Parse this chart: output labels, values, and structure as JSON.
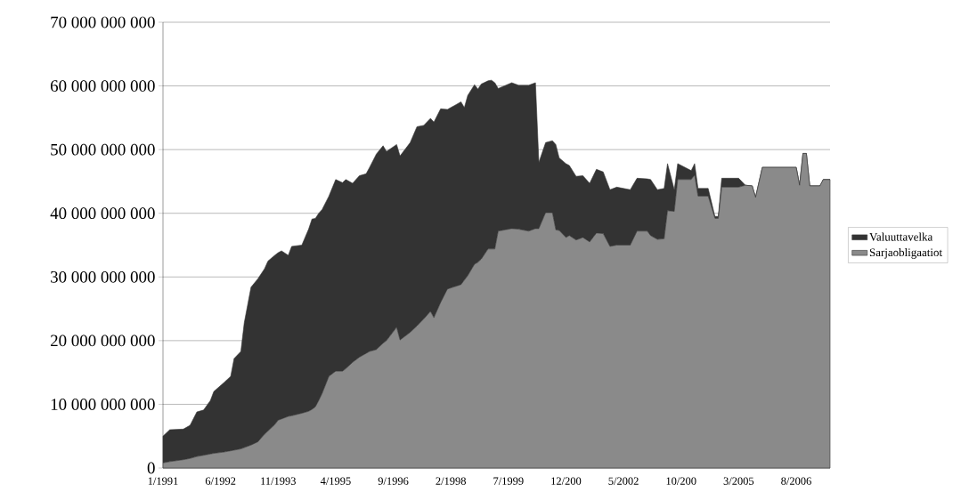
{
  "chart_data": {
    "type": "area",
    "stacked": true,
    "grid": "y",
    "legend": "right",
    "x": [
      "1991-01",
      "1991-03",
      "1991-07",
      "1991-09",
      "1991-11",
      "1992-01",
      "1992-03",
      "1992-04",
      "1992-07",
      "1992-09",
      "1992-10",
      "1992-12",
      "1993-01",
      "1993-03",
      "1993-05",
      "1993-07",
      "1993-08",
      "1993-10",
      "1993-11",
      "1993-12",
      "1994-02",
      "1994-03",
      "1994-06",
      "1994-08",
      "1994-09",
      "1994-10",
      "1994-11",
      "1994-12",
      "1995-02",
      "1995-04",
      "1995-06",
      "1995-07",
      "1995-09",
      "1995-11",
      "1996-01",
      "1996-02",
      "1996-04",
      "1996-06",
      "1996-07",
      "1996-10",
      "1996-11",
      "1997-02",
      "1997-04",
      "1997-06",
      "1997-08",
      "1997-09",
      "1997-11",
      "1998-01",
      "1998-05",
      "1998-06",
      "1998-07",
      "1998-09",
      "1998-10",
      "1998-11",
      "1999-01",
      "1999-02",
      "1999-03",
      "1999-04",
      "1999-08",
      "1999-10",
      "2000-01",
      "2000-03",
      "2000-04",
      "2000-06",
      "2000-08",
      "2000-09",
      "2000-10",
      "2000-12",
      "2001-01",
      "2001-03",
      "2001-05",
      "2001-07",
      "2001-09",
      "2001-11",
      "2002-01",
      "2002-03",
      "2002-05",
      "2002-07",
      "2002-09",
      "2002-12",
      "2003-01",
      "2003-03",
      "2003-05",
      "2003-06",
      "2003-08",
      "2003-09",
      "2004-01",
      "2004-02",
      "2004-03",
      "2004-06",
      "2004-08",
      "2004-09",
      "2004-10",
      "2005-03",
      "2005-05",
      "2005-07",
      "2005-08",
      "2005-10",
      "2006-08",
      "2006-09",
      "2006-10",
      "2006-11",
      "2006-12",
      "2007-03",
      "2007-04",
      "2007-06"
    ],
    "series": [
      {
        "name": "Sarjaobligaatiot",
        "color": "#8a8a8a",
        "values": [
          800000000,
          1000000000,
          1300000000,
          1500000000,
          1800000000,
          2000000000,
          2200000000,
          2300000000,
          2500000000,
          2700000000,
          2800000000,
          3000000000,
          3200000000,
          3600000000,
          4100000000,
          5300000000,
          5800000000,
          6800000000,
          7500000000,
          7700000000,
          8100000000,
          8200000000,
          8600000000,
          8900000000,
          9200000000,
          9600000000,
          10600000000,
          11700000000,
          14400000000,
          15200000000,
          15200000000,
          15600000000,
          16600000000,
          17400000000,
          18000000000,
          18300000000,
          18600000000,
          19600000000,
          20000000000,
          22100000000,
          20100000000,
          21300000000,
          22300000000,
          23400000000,
          24600000000,
          23600000000,
          26000000000,
          28100000000,
          28800000000,
          29500000000,
          30200000000,
          32000000000,
          32300000000,
          32800000000,
          34400000000,
          34400000000,
          34400000000,
          37200000000,
          37600000000,
          37500000000,
          37200000000,
          37600000000,
          37600000000,
          40100000000,
          40100000000,
          37400000000,
          37300000000,
          36200000000,
          36500000000,
          35800000000,
          36200000000,
          35500000000,
          36900000000,
          36800000000,
          34800000000,
          35000000000,
          35000000000,
          35000000000,
          37200000000,
          37200000000,
          36500000000,
          35900000000,
          36000000000,
          40400000000,
          40300000000,
          45300000000,
          45300000000,
          46000000000,
          42700000000,
          42700000000,
          39200000000,
          39200000000,
          44100000000,
          44100000000,
          44400000000,
          44300000000,
          42500000000,
          47200000000,
          47200000000,
          44400000000,
          49400000000,
          49400000000,
          44300000000,
          44300000000,
          45300000000,
          45300000000
        ]
      },
      {
        "name": "Valuuttavelka",
        "color": "#333333",
        "values": [
          4200000000,
          5000000000,
          4800000000,
          5200000000,
          7000000000,
          7100000000,
          8400000000,
          9700000000,
          10900000000,
          11700000000,
          14400000000,
          15300000000,
          19600000000,
          24800000000,
          25600000000,
          26000000000,
          26700000000,
          26600000000,
          26300000000,
          26400000000,
          25300000000,
          26600000000,
          26400000000,
          28600000000,
          29900000000,
          29600000000,
          29400000000,
          28900000000,
          28300000000,
          30100000000,
          29600000000,
          29700000000,
          28100000000,
          28500000000,
          28200000000,
          28900000000,
          30700000000,
          31000000000,
          29700000000,
          28700000000,
          28900000000,
          29800000000,
          31300000000,
          30400000000,
          30300000000,
          30700000000,
          30400000000,
          28200000000,
          28700000000,
          27100000000,
          28300000000,
          28200000000,
          27200000000,
          27500000000,
          26400000000,
          26500000000,
          26100000000,
          22400000000,
          22900000000,
          22600000000,
          22900000000,
          22900000000,
          10400000000,
          11000000000,
          11300000000,
          13400000000,
          11400000000,
          11600000000,
          11000000000,
          10000000000,
          9700000000,
          9200000000,
          10000000000,
          9700000000,
          8900000000,
          9100000000,
          8900000000,
          8700000000,
          8300000000,
          8200000000,
          8800000000,
          7800000000,
          7900000000,
          7400000000,
          3400000000,
          2500000000,
          1400000000,
          1800000000,
          1200000000,
          1200000000,
          300000000,
          300000000,
          1400000000,
          1400000000,
          0,
          0,
          0,
          0,
          0,
          0,
          0,
          0,
          0,
          0,
          0,
          0
        ]
      }
    ],
    "xlim": [
      "1991-01",
      "2007-06"
    ],
    "xticks": [
      {
        "value": "1991-01",
        "label": "1/1991"
      },
      {
        "value": "1992-06",
        "label": "6/1992"
      },
      {
        "value": "1993-11",
        "label": "11/1993"
      },
      {
        "value": "1995-04",
        "label": "4/1995"
      },
      {
        "value": "1996-09",
        "label": "9/1996"
      },
      {
        "value": "1998-02",
        "label": "2/1998"
      },
      {
        "value": "1999-07",
        "label": "7/1999"
      },
      {
        "value": "2000-12",
        "label": "12/200"
      },
      {
        "value": "2002-05",
        "label": "5/2002"
      },
      {
        "value": "2003-10",
        "label": "10/200"
      },
      {
        "value": "2005-03",
        "label": "3/2005"
      },
      {
        "value": "2006-08",
        "label": "8/2006"
      }
    ],
    "ylim": [
      0,
      70000000000
    ],
    "yticks": [
      0,
      {
        "value": 10000000000,
        "label": "10 000 000 000"
      },
      {
        "value": 20000000000,
        "label": "20 000 000 000"
      },
      {
        "value": 30000000000,
        "label": "30 000 000 000"
      },
      {
        "value": 40000000000,
        "label": "40 000 000 000"
      },
      {
        "value": 50000000000,
        "label": "50 000 000 000"
      },
      {
        "value": 60000000000,
        "label": "60 000 000 000"
      },
      {
        "value": 70000000000,
        "label": "70 000 000 000"
      }
    ]
  }
}
